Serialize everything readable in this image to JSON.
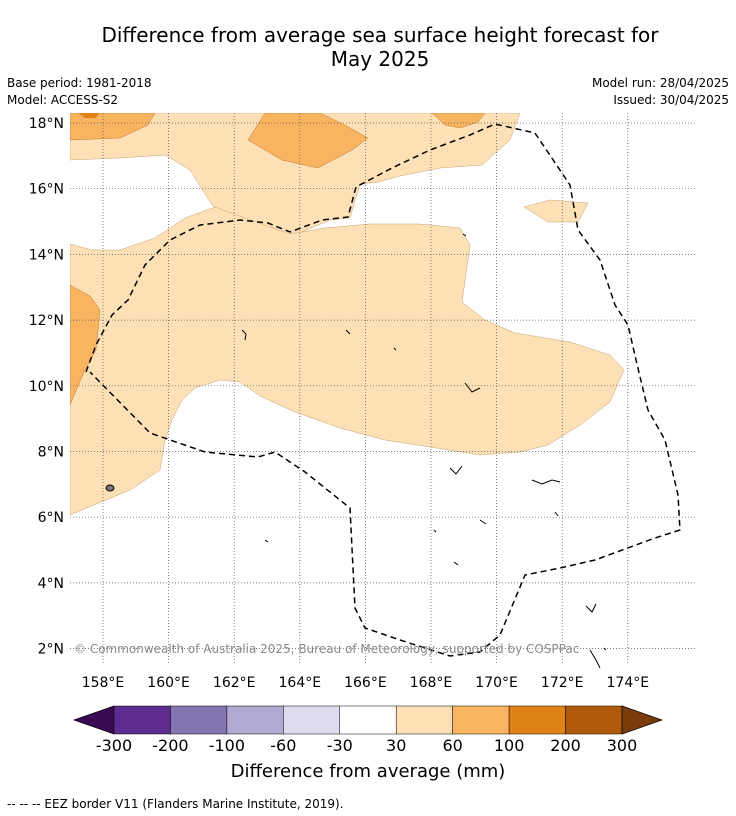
{
  "title": {
    "line1": "Difference from average sea surface height forecast for",
    "line2": "May 2025"
  },
  "meta_left": {
    "base_period": "Base period: 1981-2018",
    "model": "Model: ACCESS-S2"
  },
  "meta_right": {
    "model_run": "Model run: 28/04/2025",
    "issued": "Issued: 30/04/2025"
  },
  "map": {
    "lat_labels": [
      "18°N",
      "16°N",
      "14°N",
      "12°N",
      "10°N",
      "8°N",
      "6°N",
      "4°N",
      "2°N"
    ],
    "lon_labels": [
      "158°E",
      "160°E",
      "162°E",
      "164°E",
      "166°E",
      "168°E",
      "170°E",
      "172°E",
      "174°E"
    ],
    "copyright": "© Commonwealth of Australia 2025, Bureau of Meteorology, supported by COSPPac"
  },
  "colorbar": {
    "title": "Difference from average (mm)",
    "ticks": [
      "-300",
      "-200",
      "-100",
      "-60",
      "-30",
      "30",
      "60",
      "100",
      "200",
      "300"
    ],
    "colors": [
      "#3b0a52",
      "#5d2c8e",
      "#8574b2",
      "#b1a9d3",
      "#dcdcee",
      "#ffffff",
      "#fde0b5",
      "#f9b461",
      "#e08316",
      "#b25a0c",
      "#7b3b0a"
    ]
  },
  "footer": "--  --  -- EEZ border V11 (Flanders Marine Institute, 2019)."
}
